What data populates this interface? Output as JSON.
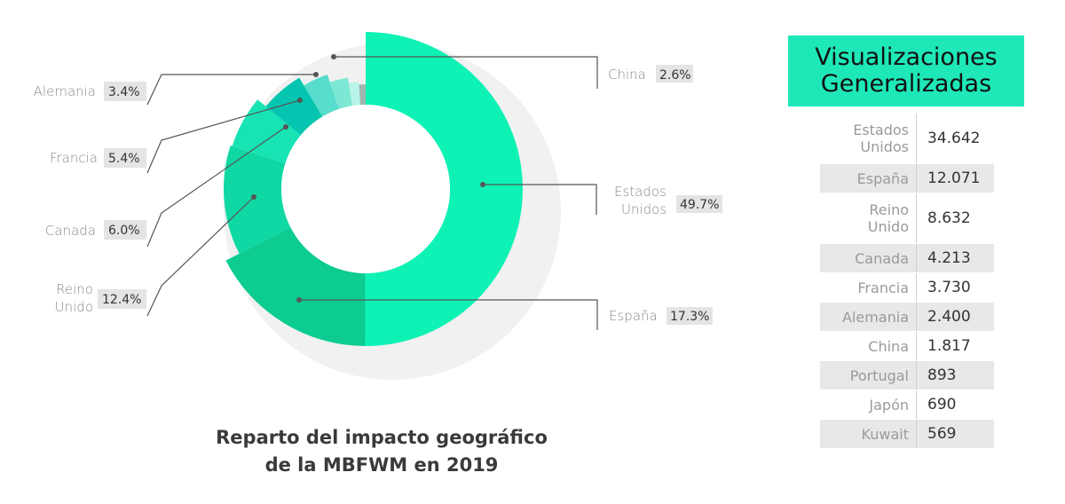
{
  "chart_data": {
    "type": "pie",
    "title": "Reparto del impacto geográfico\nde la MBFWM en 2019",
    "slices": [
      {
        "label": "Estados Unidos",
        "value": 49.7,
        "display": "49.7%",
        "color": "#0ff2b6"
      },
      {
        "label": "España",
        "value": 17.3,
        "display": "17.3%",
        "color": "#0ccc91"
      },
      {
        "label": "Reino Unido",
        "value": 12.4,
        "display": "12.4%",
        "color": "#10d8a4"
      },
      {
        "label": "Canada",
        "value": 6.0,
        "display": "6.0%",
        "color": "#17e3b4"
      },
      {
        "label": "Francia",
        "value": 5.4,
        "display": "5.4%",
        "color": "#04c6b0"
      },
      {
        "label": "Alemania",
        "value": 3.4,
        "display": "3.4%",
        "color": "#58dccb"
      },
      {
        "label": "China",
        "value": 2.6,
        "display": "2.6%",
        "color": "#7ce8d4"
      },
      {
        "label": "",
        "value": 1.5,
        "display": "",
        "color": "#b9f4e8"
      },
      {
        "label": "",
        "value": 1.0,
        "display": "",
        "color": "#9fb5b0"
      }
    ]
  },
  "caption": {
    "line1": "Reparto del impacto geográfico",
    "line2": "de la MBFWM en 2019"
  },
  "labels": {
    "china": {
      "name": "China",
      "pct": "2.6%"
    },
    "alemania": {
      "name": "Alemania",
      "pct": "3.4%"
    },
    "francia": {
      "name": "Francia",
      "pct": "5.4%"
    },
    "canada": {
      "name": "Canada",
      "pct": "6.0%"
    },
    "reino_unido": {
      "name1": "Reino",
      "name2": "Unido",
      "pct": "12.4%"
    },
    "estados_unidos": {
      "name1": "Estados",
      "name2": "Unidos",
      "pct": "49.7%"
    },
    "espana": {
      "name": "España",
      "pct": "17.3%"
    }
  },
  "panel": {
    "title_line1": "Visualizaciones",
    "title_line2": "Generalizadas",
    "accent_color": "#1ee8b8",
    "rows": [
      {
        "country": "Estados\nUnidos",
        "value": "34.642"
      },
      {
        "country": "España",
        "value": "12.071"
      },
      {
        "country": "Reino\nUnido",
        "value": "8.632"
      },
      {
        "country": "Canada",
        "value": "4.213"
      },
      {
        "country": "Francia",
        "value": "3.730"
      },
      {
        "country": "Alemania",
        "value": "2.400"
      },
      {
        "country": "China",
        "value": "1.817"
      },
      {
        "country": "Portugal",
        "value": "893"
      },
      {
        "country": "Japón",
        "value": "690"
      },
      {
        "country": "Kuwait",
        "value": "569"
      }
    ]
  }
}
